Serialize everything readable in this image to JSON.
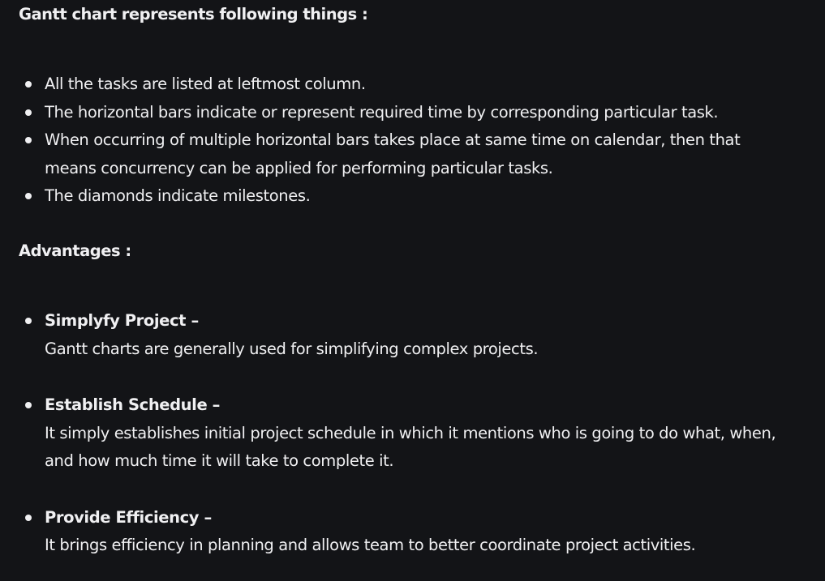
{
  "section_1": {
    "heading": "Gantt chart represents following things :",
    "items": [
      "All the tasks are listed at leftmost column.",
      "The horizontal bars indicate or represent required time by corresponding particular task.",
      "When occurring of multiple horizontal bars takes place at same time on calendar, then that means concurrency can be applied for performing particular tasks.",
      "The diamonds indicate milestones."
    ]
  },
  "section_2": {
    "heading": "Advantages :",
    "items": [
      {
        "title": "Simplyfy Project –",
        "description": "Gantt charts are generally used for simplifying complex projects."
      },
      {
        "title": "Establish Schedule –",
        "description": "It simply establishes initial project schedule in which it mentions who is going to do what, when, and how much time it will take to complete it."
      },
      {
        "title": "Provide Efficiency –",
        "description": "It brings efficiency in planning and allows team to better coordinate project activities."
      }
    ]
  }
}
